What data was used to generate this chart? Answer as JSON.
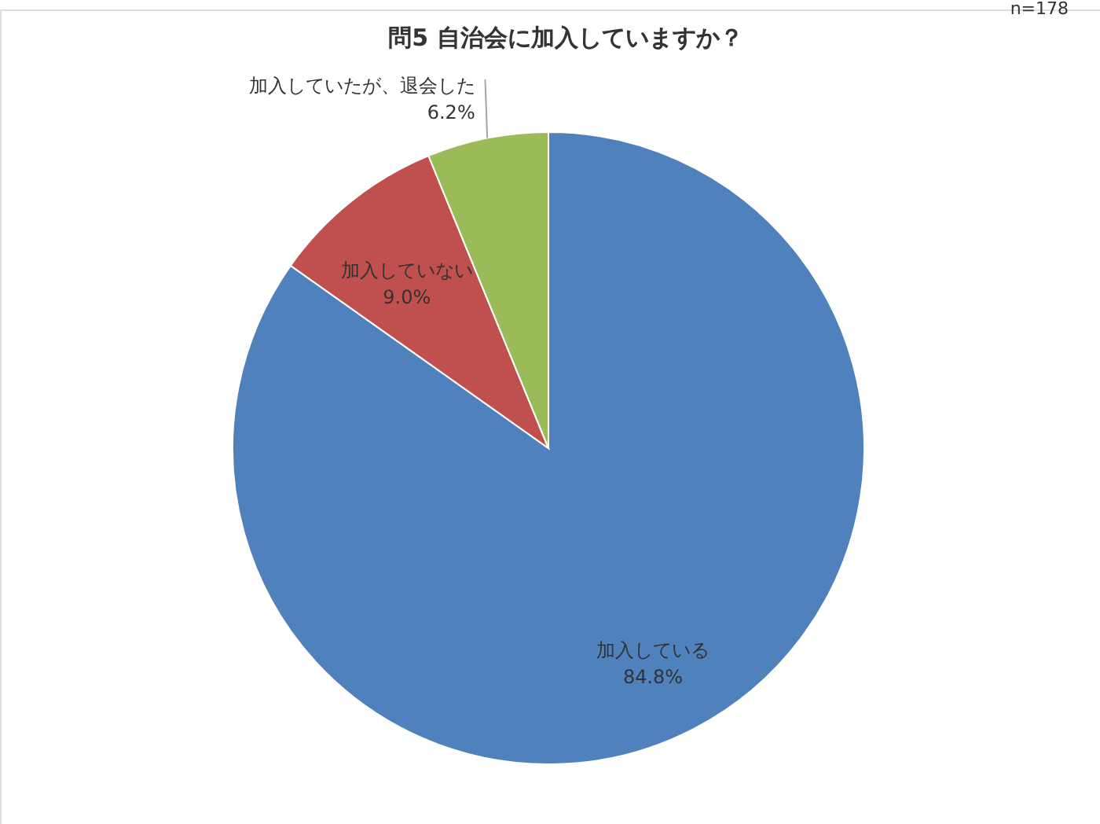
{
  "chart_data": {
    "type": "pie",
    "title": "問5  自治会に加入していますか？",
    "categories": [
      "加入している",
      "加入していない",
      "加入していたが、退会した"
    ],
    "values": [
      84.8,
      9.0,
      6.2
    ],
    "colors": [
      "#4f81bd",
      "#c0504d",
      "#9bbb59"
    ],
    "value_labels": [
      "84.8%",
      "9.0%",
      "6.2%"
    ],
    "annotations": [
      "n=178"
    ]
  }
}
